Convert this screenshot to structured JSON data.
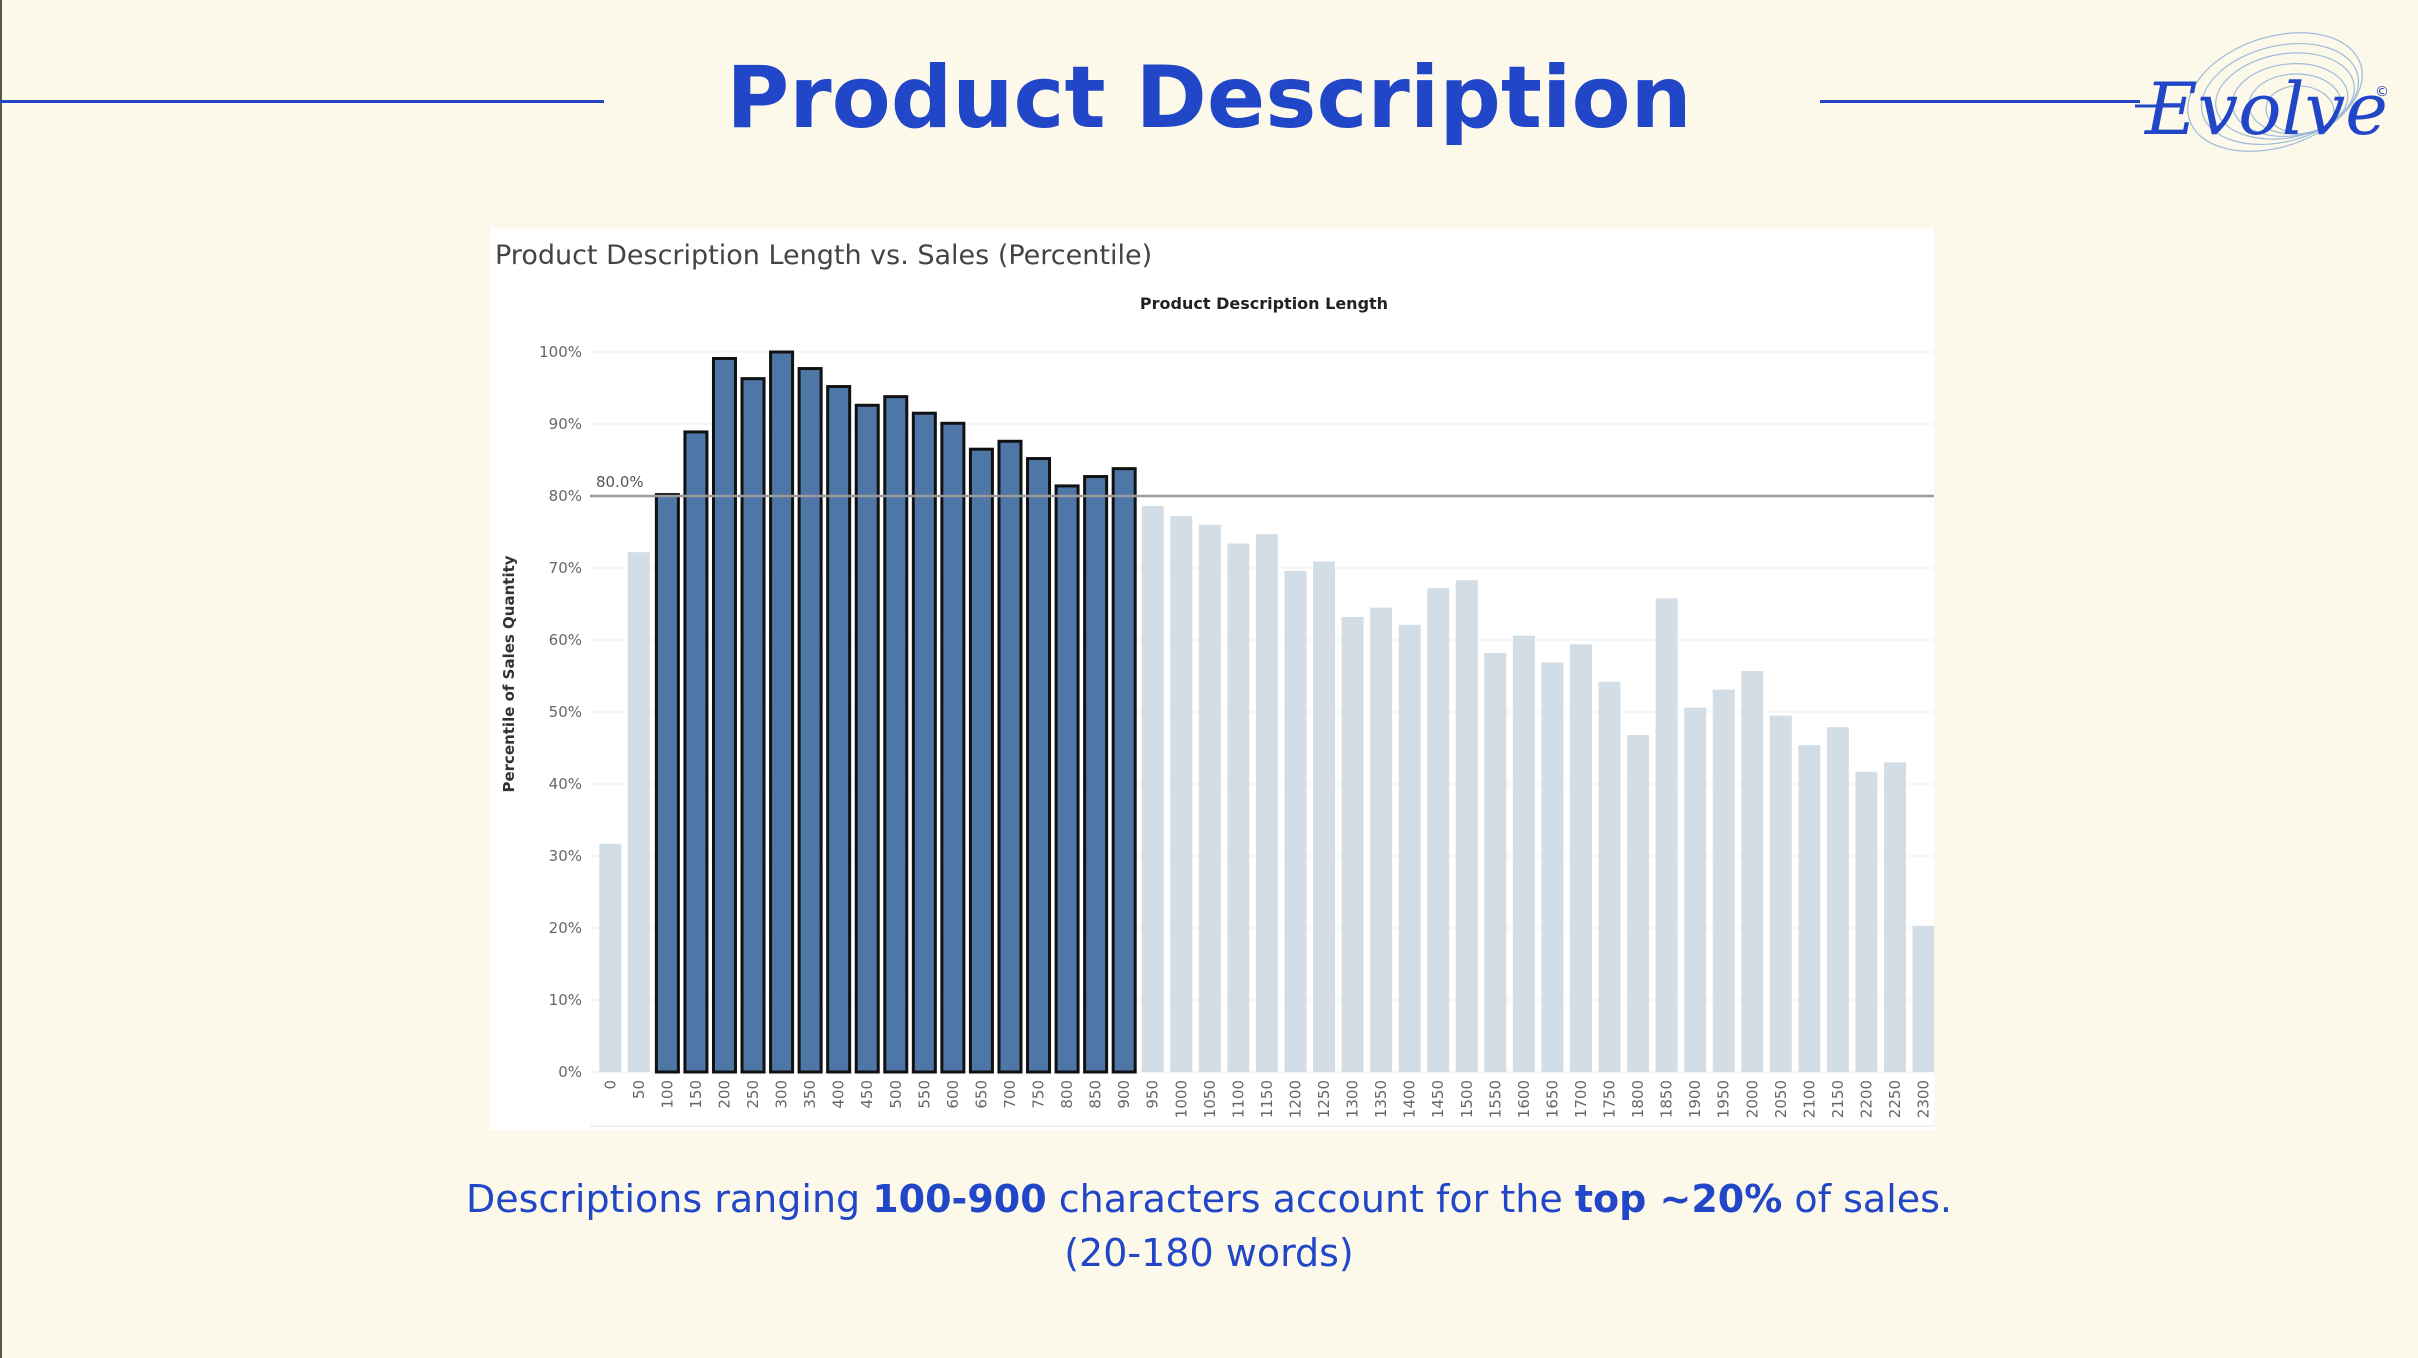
{
  "slide": {
    "title": "Product Description",
    "logo_text": "Evolve",
    "logo_mark": "©",
    "colors": {
      "accent": "#2146c7",
      "background": "#fdf9ea"
    }
  },
  "caption": {
    "line1_a": "Descriptions ranging ",
    "line1_b": "100-900",
    "line1_c": " characters account for the ",
    "line1_d": "top ~20%",
    "line1_e": " of sales.",
    "line2": "(20-180 words)"
  },
  "chart_data": {
    "type": "bar",
    "title": "Product Description Length vs. Sales (Percentile)",
    "column_header": "Product Description Length",
    "ylabel": "Percentile of Sales Quantity",
    "xlabel": "",
    "ylim": [
      0,
      100
    ],
    "yticks": [
      "0%",
      "10%",
      "20%",
      "30%",
      "40%",
      "50%",
      "60%",
      "70%",
      "80%",
      "90%",
      "100%"
    ],
    "reference_line": {
      "value": 80,
      "label": "80.0%"
    },
    "highlight_range": [
      100,
      900
    ],
    "colors": {
      "highlight": "#4e76a6",
      "muted": "#d3dde6",
      "outline": "#111111",
      "reference": "#9a9a9a"
    },
    "categories": [
      "0",
      "50",
      "100",
      "150",
      "200",
      "250",
      "300",
      "350",
      "400",
      "450",
      "500",
      "550",
      "600",
      "650",
      "700",
      "750",
      "800",
      "850",
      "900",
      "950",
      "1000",
      "1050",
      "1100",
      "1150",
      "1200",
      "1250",
      "1300",
      "1350",
      "1400",
      "1450",
      "1500",
      "1550",
      "1600",
      "1650",
      "1700",
      "1750",
      "1800",
      "1850",
      "1900",
      "1950",
      "2000",
      "2050",
      "2100",
      "2150",
      "2200",
      "2250",
      "2300"
    ],
    "values": [
      31.7,
      72.2,
      80.2,
      88.9,
      99.1,
      96.3,
      100,
      97.7,
      95.2,
      92.6,
      93.8,
      91.5,
      90.1,
      86.5,
      87.6,
      85.2,
      81.4,
      82.7,
      83.8,
      78.6,
      77.2,
      76.0,
      73.4,
      74.7,
      69.6,
      70.9,
      63.2,
      64.5,
      62.1,
      67.2,
      68.3,
      58.2,
      60.6,
      56.9,
      59.4,
      54.2,
      46.8,
      65.8,
      50.6,
      53.1,
      55.7,
      49.5,
      45.4,
      47.9,
      41.7,
      43.0,
      20.3
    ]
  }
}
